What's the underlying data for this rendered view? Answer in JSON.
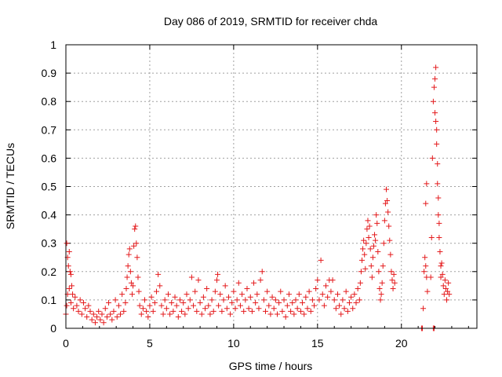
{
  "chart_data": {
    "type": "scatter",
    "title": "Day 086 of 2019, SRMTID for receiver chda",
    "xlabel": "GPS time / hours",
    "ylabel": "SRMTID / TECUs",
    "xlim": [
      0,
      24.5
    ],
    "ylim": [
      0,
      1
    ],
    "xticks": [
      0,
      5,
      10,
      15,
      20
    ],
    "xtick_labels": [
      "0",
      "5",
      "10",
      "15",
      "20"
    ],
    "yticks": [
      0,
      0.1,
      0.2,
      0.3,
      0.4,
      0.5,
      0.6,
      0.7,
      0.8,
      0.9,
      1
    ],
    "ytick_labels": [
      "0",
      "0.1",
      "0.2",
      "0.3",
      "0.4",
      "0.5",
      "0.6",
      "0.7",
      "0.8",
      "0.9",
      "1"
    ],
    "grid": true,
    "marker": "+",
    "color": "#e41a1c",
    "series": [
      {
        "name": "SRMTID",
        "points": [
          [
            0.05,
            0.3
          ],
          [
            0.1,
            0.25
          ],
          [
            0.15,
            0.22
          ],
          [
            0.2,
            0.27
          ],
          [
            0.25,
            0.2
          ],
          [
            0.3,
            0.19
          ],
          [
            0.35,
            0.15
          ],
          [
            0.4,
            0.12
          ],
          [
            0.0,
            0.05
          ],
          [
            0.05,
            0.08
          ],
          [
            0.1,
            0.12
          ],
          [
            0.2,
            0.14
          ],
          [
            0.3,
            0.09
          ],
          [
            0.45,
            0.07
          ],
          [
            0.55,
            0.11
          ],
          [
            0.65,
            0.08
          ],
          [
            0.75,
            0.06
          ],
          [
            0.85,
            0.1
          ],
          [
            0.95,
            0.05
          ],
          [
            1.05,
            0.09
          ],
          [
            1.15,
            0.07
          ],
          [
            1.25,
            0.04
          ],
          [
            1.35,
            0.08
          ],
          [
            1.45,
            0.06
          ],
          [
            1.55,
            0.03
          ],
          [
            1.65,
            0.05
          ],
          [
            1.75,
            0.02
          ],
          [
            1.85,
            0.04
          ],
          [
            1.95,
            0.06
          ],
          [
            2.05,
            0.03
          ],
          [
            2.15,
            0.05
          ],
          [
            2.25,
            0.02
          ],
          [
            2.35,
            0.07
          ],
          [
            2.45,
            0.04
          ],
          [
            2.55,
            0.09
          ],
          [
            2.65,
            0.05
          ],
          [
            2.75,
            0.03
          ],
          [
            2.85,
            0.06
          ],
          [
            2.95,
            0.1
          ],
          [
            3.05,
            0.04
          ],
          [
            3.15,
            0.08
          ],
          [
            3.25,
            0.05
          ],
          [
            3.35,
            0.12
          ],
          [
            3.45,
            0.06
          ],
          [
            3.55,
            0.09
          ],
          [
            3.6,
            0.14
          ],
          [
            3.65,
            0.18
          ],
          [
            3.7,
            0.22
          ],
          [
            3.75,
            0.26
          ],
          [
            3.8,
            0.28
          ],
          [
            3.85,
            0.2
          ],
          [
            3.9,
            0.16
          ],
          [
            3.95,
            0.12
          ],
          [
            4.0,
            0.15
          ],
          [
            4.05,
            0.29
          ],
          [
            4.1,
            0.35
          ],
          [
            4.15,
            0.36
          ],
          [
            4.2,
            0.3
          ],
          [
            4.25,
            0.25
          ],
          [
            4.3,
            0.18
          ],
          [
            4.35,
            0.13
          ],
          [
            4.4,
            0.08
          ],
          [
            4.5,
            0.05
          ],
          [
            4.6,
            0.07
          ],
          [
            4.7,
            0.1
          ],
          [
            4.8,
            0.06
          ],
          [
            4.9,
            0.04
          ],
          [
            5.0,
            0.08
          ],
          [
            5.1,
            0.11
          ],
          [
            5.2,
            0.06
          ],
          [
            5.3,
            0.09
          ],
          [
            5.4,
            0.13
          ],
          [
            5.5,
            0.19
          ],
          [
            5.6,
            0.15
          ],
          [
            5.7,
            0.08
          ],
          [
            5.8,
            0.05
          ],
          [
            5.9,
            0.1
          ],
          [
            6.0,
            0.07
          ],
          [
            6.1,
            0.12
          ],
          [
            6.2,
            0.05
          ],
          [
            6.3,
            0.09
          ],
          [
            6.4,
            0.06
          ],
          [
            6.5,
            0.11
          ],
          [
            6.6,
            0.08
          ],
          [
            6.7,
            0.04
          ],
          [
            6.8,
            0.1
          ],
          [
            6.9,
            0.06
          ],
          [
            7.0,
            0.09
          ],
          [
            7.1,
            0.05
          ],
          [
            7.2,
            0.12
          ],
          [
            7.3,
            0.07
          ],
          [
            7.4,
            0.1
          ],
          [
            7.5,
            0.18
          ],
          [
            7.6,
            0.08
          ],
          [
            7.7,
            0.13
          ],
          [
            7.8,
            0.06
          ],
          [
            7.9,
            0.17
          ],
          [
            8.0,
            0.09
          ],
          [
            8.1,
            0.05
          ],
          [
            8.2,
            0.11
          ],
          [
            8.3,
            0.07
          ],
          [
            8.4,
            0.14
          ],
          [
            8.5,
            0.08
          ],
          [
            8.6,
            0.05
          ],
          [
            8.7,
            0.1
          ],
          [
            8.8,
            0.06
          ],
          [
            8.9,
            0.13
          ],
          [
            9.0,
            0.17
          ],
          [
            9.05,
            0.19
          ],
          [
            9.1,
            0.08
          ],
          [
            9.2,
            0.12
          ],
          [
            9.3,
            0.06
          ],
          [
            9.4,
            0.1
          ],
          [
            9.5,
            0.15
          ],
          [
            9.6,
            0.07
          ],
          [
            9.7,
            0.11
          ],
          [
            9.8,
            0.05
          ],
          [
            9.9,
            0.09
          ],
          [
            10.0,
            0.13
          ],
          [
            10.1,
            0.07
          ],
          [
            10.2,
            0.1
          ],
          [
            10.3,
            0.16
          ],
          [
            10.4,
            0.08
          ],
          [
            10.5,
            0.12
          ],
          [
            10.6,
            0.06
          ],
          [
            10.7,
            0.1
          ],
          [
            10.8,
            0.14
          ],
          [
            10.9,
            0.07
          ],
          [
            11.0,
            0.11
          ],
          [
            11.1,
            0.06
          ],
          [
            11.2,
            0.16
          ],
          [
            11.3,
            0.09
          ],
          [
            11.4,
            0.12
          ],
          [
            11.5,
            0.07
          ],
          [
            11.6,
            0.17
          ],
          [
            11.7,
            0.2
          ],
          [
            11.8,
            0.1
          ],
          [
            11.9,
            0.06
          ],
          [
            12.0,
            0.13
          ],
          [
            12.1,
            0.08
          ],
          [
            12.2,
            0.05
          ],
          [
            12.3,
            0.11
          ],
          [
            12.4,
            0.07
          ],
          [
            12.5,
            0.1
          ],
          [
            12.6,
            0.05
          ],
          [
            12.7,
            0.09
          ],
          [
            12.8,
            0.13
          ],
          [
            12.9,
            0.06
          ],
          [
            13.0,
            0.1
          ],
          [
            13.1,
            0.04
          ],
          [
            13.2,
            0.08
          ],
          [
            13.3,
            0.12
          ],
          [
            13.4,
            0.06
          ],
          [
            13.5,
            0.09
          ],
          [
            13.6,
            0.05
          ],
          [
            13.7,
            0.1
          ],
          [
            13.8,
            0.07
          ],
          [
            13.9,
            0.12
          ],
          [
            14.0,
            0.06
          ],
          [
            14.1,
            0.09
          ],
          [
            14.2,
            0.05
          ],
          [
            14.3,
            0.11
          ],
          [
            14.4,
            0.07
          ],
          [
            14.5,
            0.13
          ],
          [
            14.6,
            0.06
          ],
          [
            14.7,
            0.1
          ],
          [
            14.8,
            0.08
          ],
          [
            14.9,
            0.14
          ],
          [
            15.0,
            0.17
          ],
          [
            15.1,
            0.1
          ],
          [
            15.2,
            0.24
          ],
          [
            15.3,
            0.12
          ],
          [
            15.4,
            0.08
          ],
          [
            15.5,
            0.15
          ],
          [
            15.6,
            0.11
          ],
          [
            15.7,
            0.17
          ],
          [
            15.8,
            0.13
          ],
          [
            15.9,
            0.17
          ],
          [
            16.0,
            0.1
          ],
          [
            16.1,
            0.07
          ],
          [
            16.2,
            0.12
          ],
          [
            16.3,
            0.08
          ],
          [
            16.4,
            0.05
          ],
          [
            16.5,
            0.1
          ],
          [
            16.6,
            0.07
          ],
          [
            16.7,
            0.13
          ],
          [
            16.8,
            0.06
          ],
          [
            16.9,
            0.09
          ],
          [
            17.0,
            0.11
          ],
          [
            17.1,
            0.07
          ],
          [
            17.2,
            0.12
          ],
          [
            17.3,
            0.09
          ],
          [
            17.4,
            0.14
          ],
          [
            17.5,
            0.1
          ],
          [
            17.55,
            0.16
          ],
          [
            17.6,
            0.2
          ],
          [
            17.65,
            0.24
          ],
          [
            17.7,
            0.28
          ],
          [
            17.75,
            0.31
          ],
          [
            17.8,
            0.26
          ],
          [
            17.85,
            0.21
          ],
          [
            17.9,
            0.3
          ],
          [
            17.95,
            0.35
          ],
          [
            18.0,
            0.38
          ],
          [
            18.05,
            0.32
          ],
          [
            18.1,
            0.36
          ],
          [
            18.15,
            0.28
          ],
          [
            18.2,
            0.22
          ],
          [
            18.25,
            0.18
          ],
          [
            18.3,
            0.25
          ],
          [
            18.35,
            0.29
          ],
          [
            18.4,
            0.33
          ],
          [
            18.45,
            0.31
          ],
          [
            18.5,
            0.4
          ],
          [
            18.55,
            0.37
          ],
          [
            18.6,
            0.27
          ],
          [
            18.65,
            0.2
          ],
          [
            18.7,
            0.14
          ],
          [
            18.75,
            0.1
          ],
          [
            18.8,
            0.12
          ],
          [
            18.85,
            0.16
          ],
          [
            18.9,
            0.22
          ],
          [
            18.95,
            0.3
          ],
          [
            19.0,
            0.38
          ],
          [
            19.05,
            0.44
          ],
          [
            19.1,
            0.49
          ],
          [
            19.15,
            0.45
          ],
          [
            19.2,
            0.41
          ],
          [
            19.25,
            0.36
          ],
          [
            19.3,
            0.31
          ],
          [
            19.35,
            0.26
          ],
          [
            19.4,
            0.2
          ],
          [
            19.45,
            0.17
          ],
          [
            19.5,
            0.14
          ],
          [
            19.55,
            0.19
          ],
          [
            19.6,
            0.16
          ],
          [
            21.2,
            0.0
          ],
          [
            21.25,
            0.0
          ],
          [
            21.3,
            0.07
          ],
          [
            21.35,
            0.2
          ],
          [
            21.4,
            0.25
          ],
          [
            21.45,
            0.22
          ],
          [
            21.5,
            0.18
          ],
          [
            21.55,
            0.13
          ],
          [
            21.45,
            0.44
          ],
          [
            21.5,
            0.51
          ],
          [
            21.9,
            0.0
          ],
          [
            21.95,
            0.0
          ],
          [
            21.75,
            0.18
          ],
          [
            21.8,
            0.32
          ],
          [
            21.85,
            0.6
          ],
          [
            21.9,
            0.8
          ],
          [
            21.95,
            0.85
          ],
          [
            22.0,
            0.88
          ],
          [
            22.05,
            0.92
          ],
          [
            22.0,
            0.76
          ],
          [
            22.05,
            0.73
          ],
          [
            22.1,
            0.7
          ],
          [
            22.1,
            0.65
          ],
          [
            22.15,
            0.58
          ],
          [
            22.15,
            0.51
          ],
          [
            22.2,
            0.46
          ],
          [
            22.2,
            0.4
          ],
          [
            22.25,
            0.37
          ],
          [
            22.25,
            0.32
          ],
          [
            22.3,
            0.27
          ],
          [
            22.35,
            0.22
          ],
          [
            22.35,
            0.18
          ],
          [
            22.4,
            0.23
          ],
          [
            22.45,
            0.19
          ],
          [
            22.5,
            0.15
          ],
          [
            22.55,
            0.12
          ],
          [
            22.6,
            0.17
          ],
          [
            22.65,
            0.14
          ],
          [
            22.7,
            0.1
          ],
          [
            22.75,
            0.13
          ],
          [
            22.8,
            0.16
          ],
          [
            22.85,
            0.12
          ]
        ]
      }
    ]
  }
}
